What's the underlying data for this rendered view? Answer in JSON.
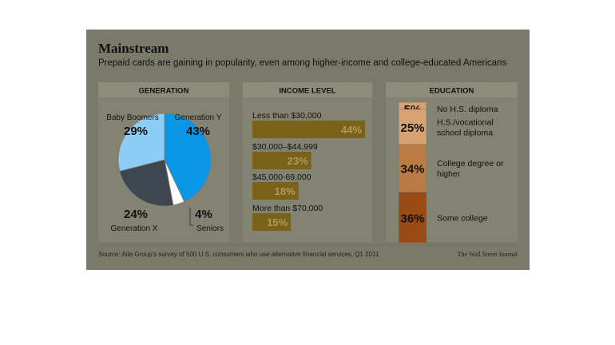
{
  "header": {
    "title": "Mainstream",
    "subtitle": "Prepaid cards are gaining in popularity, even among higher-income and college-educated Americans"
  },
  "footer": {
    "source": "Source: Aite Group's survey of 500 U.S. consumers who use alternative financial services, Q1 2011",
    "publisher": "The Wall Street Journal"
  },
  "colors": {
    "background": "#7a7a6a",
    "panel": "#838373",
    "header_band": "#8c8c7b",
    "income_bar": "#7a621a",
    "gen_y": "#0a96e6",
    "baby_boomers": "#8dcdf5",
    "gen_x": "#3e4650",
    "seniors": "#ffffff",
    "edu_light": "#d7a373",
    "edu_mid": "#bb7b44",
    "edu_dark": "#9a4b15"
  },
  "chart_data": [
    {
      "type": "pie",
      "title": "GENERATION",
      "slices": [
        {
          "label": "Generation Y",
          "value": 43,
          "value_label": "43%"
        },
        {
          "label": "Seniors",
          "value": 4,
          "value_label": "4%"
        },
        {
          "label": "Generation X",
          "value": 24,
          "value_label": "24%"
        },
        {
          "label": "Baby Boomers",
          "value": 29,
          "value_label": "29%"
        }
      ]
    },
    {
      "type": "bar",
      "title": "INCOME LEVEL",
      "categories": [
        "Less than $30,000",
        "$30,000–$44,999",
        "$45,000-69,000",
        "More than $70,000"
      ],
      "values": [
        44,
        23,
        18,
        15
      ],
      "value_labels": [
        "44%",
        "23%",
        "18%",
        "15%"
      ]
    },
    {
      "type": "bar",
      "title": "EDUCATION",
      "categories": [
        "No H.S. diploma",
        "H.S./vocational school diploma",
        "College degree or higher",
        "Some college"
      ],
      "category_lines": [
        [
          "No H.S. diploma"
        ],
        [
          "H.S./vocational",
          "school diploma"
        ],
        [
          "College degree or",
          "higher"
        ],
        [
          "Some college"
        ]
      ],
      "values": [
        5,
        25,
        34,
        36
      ],
      "value_labels": [
        "5%",
        "25%",
        "34%",
        "36%"
      ]
    }
  ]
}
